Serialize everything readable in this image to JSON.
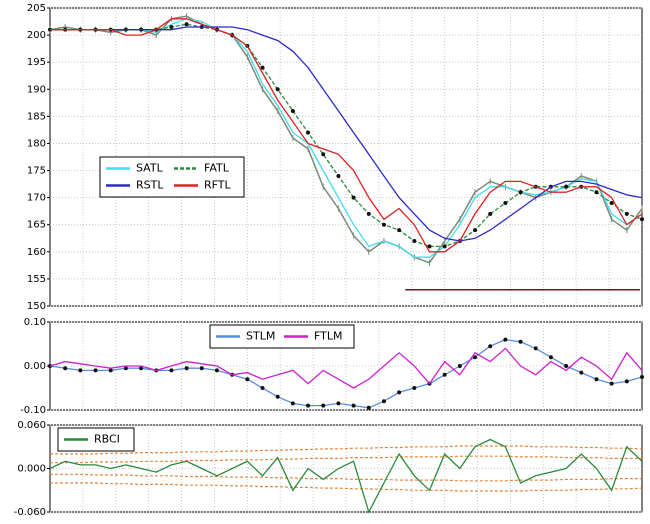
{
  "chart_data": [
    {
      "type": "line",
      "ylim": [
        150,
        205
      ],
      "yticks": [
        150,
        155,
        160,
        165,
        170,
        175,
        180,
        185,
        190,
        195,
        200,
        205
      ],
      "grid": true,
      "legend": "middle left",
      "legend_columns": 2,
      "price": {
        "color": "#7a8a78",
        "values": [
          201,
          201.5,
          201,
          201,
          200.5,
          201,
          201,
          200,
          203,
          203.5,
          202,
          201,
          200,
          196,
          190,
          186,
          181,
          179,
          172,
          168,
          163,
          160,
          162,
          161,
          159,
          158,
          162,
          166,
          171,
          173,
          172,
          171,
          170,
          171,
          172,
          174,
          173,
          166,
          164,
          168
        ]
      },
      "level": {
        "value": 153,
        "color": "#6b1a2a"
      },
      "series": [
        {
          "name": "SATL",
          "color": "#40dde8",
          "values": [
            201,
            201,
            201,
            201,
            201,
            201,
            201,
            200.5,
            202,
            203,
            202.5,
            201,
            200,
            197,
            191,
            187,
            182,
            180,
            175,
            170,
            165,
            161,
            162,
            161,
            159,
            159,
            161,
            165,
            170,
            172,
            172,
            171,
            170.5,
            171,
            172,
            173.5,
            173,
            167,
            165,
            167
          ]
        },
        {
          "name": "FATL",
          "color": "#2a8a3a",
          "dash": true,
          "marker": "dot",
          "values": [
            201,
            201,
            201,
            201,
            201,
            201,
            201,
            201,
            201.5,
            202,
            201.5,
            201,
            200,
            198,
            194,
            190,
            186,
            182,
            178,
            174,
            170,
            167,
            165,
            164,
            162,
            161,
            161,
            162,
            164,
            167,
            169,
            171,
            172,
            172,
            172,
            172,
            171,
            169,
            167,
            166
          ]
        },
        {
          "name": "RSTL",
          "color": "#2a2ac8",
          "values": [
            201,
            201,
            201,
            201,
            201,
            201,
            201,
            201,
            201,
            201.5,
            201.5,
            201.5,
            201.5,
            201,
            200,
            199,
            197,
            194,
            190,
            186,
            182,
            178,
            174,
            170,
            167,
            164,
            162.5,
            162,
            162.5,
            164,
            166,
            168,
            170,
            172,
            173,
            173,
            172.5,
            171.5,
            170.5,
            170
          ]
        },
        {
          "name": "RFTL",
          "color": "#dd2222",
          "values": [
            201,
            201,
            201,
            201,
            201,
            200,
            200,
            201,
            203,
            203,
            202,
            201,
            200,
            198,
            193,
            188,
            184,
            180,
            179,
            178,
            175,
            170,
            166,
            168,
            165,
            160,
            160,
            162,
            167,
            171,
            173,
            173,
            172,
            171,
            171,
            172,
            172,
            170,
            165,
            167
          ]
        }
      ]
    },
    {
      "type": "line",
      "ylim": [
        -0.1,
        0.1
      ],
      "yticks": [
        {
          "value": -0.1,
          "label": "-0.10"
        },
        {
          "value": 0,
          "label": "0.00"
        },
        {
          "value": 0.1,
          "label": "0.10"
        }
      ],
      "grid": true,
      "legend": "upper center",
      "legend_columns": 2,
      "series": [
        {
          "name": "STLM",
          "color": "#5a8ee0",
          "marker": "dot",
          "values": [
            0,
            -0.005,
            -0.01,
            -0.01,
            -0.01,
            -0.005,
            -0.005,
            -0.01,
            -0.01,
            -0.005,
            -0.005,
            -0.01,
            -0.02,
            -0.03,
            -0.05,
            -0.07,
            -0.085,
            -0.09,
            -0.09,
            -0.085,
            -0.09,
            -0.095,
            -0.08,
            -0.06,
            -0.05,
            -0.04,
            -0.02,
            0,
            0.02,
            0.045,
            0.06,
            0.055,
            0.04,
            0.02,
            0,
            -0.015,
            -0.03,
            -0.04,
            -0.035,
            -0.025
          ]
        },
        {
          "name": "FTLM",
          "color": "#cc22cc",
          "values": [
            0,
            0.01,
            0.005,
            0,
            -0.005,
            0,
            0,
            -0.01,
            0,
            0.01,
            0.005,
            0,
            -0.02,
            -0.015,
            -0.03,
            -0.02,
            -0.01,
            -0.04,
            -0.01,
            -0.03,
            -0.05,
            -0.03,
            0,
            0.03,
            0,
            -0.04,
            0.01,
            -0.02,
            0.03,
            0.01,
            0.04,
            0,
            -0.02,
            0.01,
            -0.01,
            0.02,
            0,
            -0.03,
            0.03,
            -0.01
          ]
        }
      ]
    },
    {
      "type": "line",
      "ylim": [
        -0.06,
        0.06
      ],
      "yticks": [
        {
          "value": -0.06,
          "label": "-0.060"
        },
        {
          "value": 0,
          "label": "0.000"
        },
        {
          "value": 0.06,
          "label": "0.060"
        }
      ],
      "grid": true,
      "legend": "upper left",
      "legend_columns": 1,
      "bands": {
        "color": "#e08840",
        "values": [
          [
            0.02,
            0.02,
            0.02,
            0.02,
            0.021,
            0.021,
            0.022,
            0.022,
            0.022,
            0.023,
            0.023,
            0.023,
            0.024,
            0.024,
            0.025,
            0.025,
            0.026,
            0.026,
            0.027,
            0.027,
            0.028,
            0.028,
            0.029,
            0.029,
            0.03,
            0.03,
            0.03,
            0.031,
            0.031,
            0.031,
            0.031,
            0.031,
            0.03,
            0.03,
            0.03,
            0.029,
            0.029,
            0.028,
            0.028,
            0.027
          ],
          [
            0.008,
            0.008,
            0.008,
            0.009,
            0.009,
            0.009,
            0.01,
            0.01,
            0.01,
            0.011,
            0.011,
            0.011,
            0.012,
            0.012,
            0.012,
            0.013,
            0.013,
            0.014,
            0.014,
            0.014,
            0.015,
            0.015,
            0.015,
            0.016,
            0.016,
            0.016,
            0.016,
            0.017,
            0.017,
            0.017,
            0.017,
            0.016,
            0.016,
            0.016,
            0.015,
            0.015,
            0.015,
            0.014,
            0.014,
            0.014
          ],
          [
            -0.008,
            -0.008,
            -0.008,
            -0.009,
            -0.009,
            -0.009,
            -0.01,
            -0.01,
            -0.01,
            -0.011,
            -0.011,
            -0.011,
            -0.012,
            -0.012,
            -0.012,
            -0.013,
            -0.013,
            -0.014,
            -0.014,
            -0.014,
            -0.015,
            -0.015,
            -0.015,
            -0.016,
            -0.016,
            -0.016,
            -0.016,
            -0.017,
            -0.017,
            -0.017,
            -0.017,
            -0.016,
            -0.016,
            -0.016,
            -0.015,
            -0.015,
            -0.015,
            -0.014,
            -0.014,
            -0.014
          ],
          [
            -0.02,
            -0.02,
            -0.02,
            -0.02,
            -0.021,
            -0.021,
            -0.022,
            -0.022,
            -0.022,
            -0.023,
            -0.023,
            -0.023,
            -0.024,
            -0.024,
            -0.025,
            -0.025,
            -0.026,
            -0.026,
            -0.027,
            -0.027,
            -0.028,
            -0.028,
            -0.029,
            -0.029,
            -0.03,
            -0.03,
            -0.03,
            -0.031,
            -0.031,
            -0.031,
            -0.031,
            -0.031,
            -0.03,
            -0.03,
            -0.03,
            -0.029,
            -0.029,
            -0.028,
            -0.028,
            -0.027
          ]
        ]
      },
      "series": [
        {
          "name": "RBCI",
          "color": "#2a8a3a",
          "values": [
            0,
            0.01,
            0.005,
            0.005,
            0,
            0.005,
            0,
            -0.005,
            0.005,
            0.01,
            0,
            -0.01,
            0,
            0.01,
            -0.01,
            0.015,
            -0.03,
            0,
            -0.015,
            0,
            0.01,
            -0.06,
            -0.02,
            0.02,
            -0.01,
            -0.03,
            0.02,
            0,
            0.03,
            0.04,
            0.03,
            -0.02,
            -0.01,
            -0.005,
            0,
            0.02,
            0,
            -0.03,
            0.03,
            0.01
          ]
        }
      ]
    }
  ]
}
